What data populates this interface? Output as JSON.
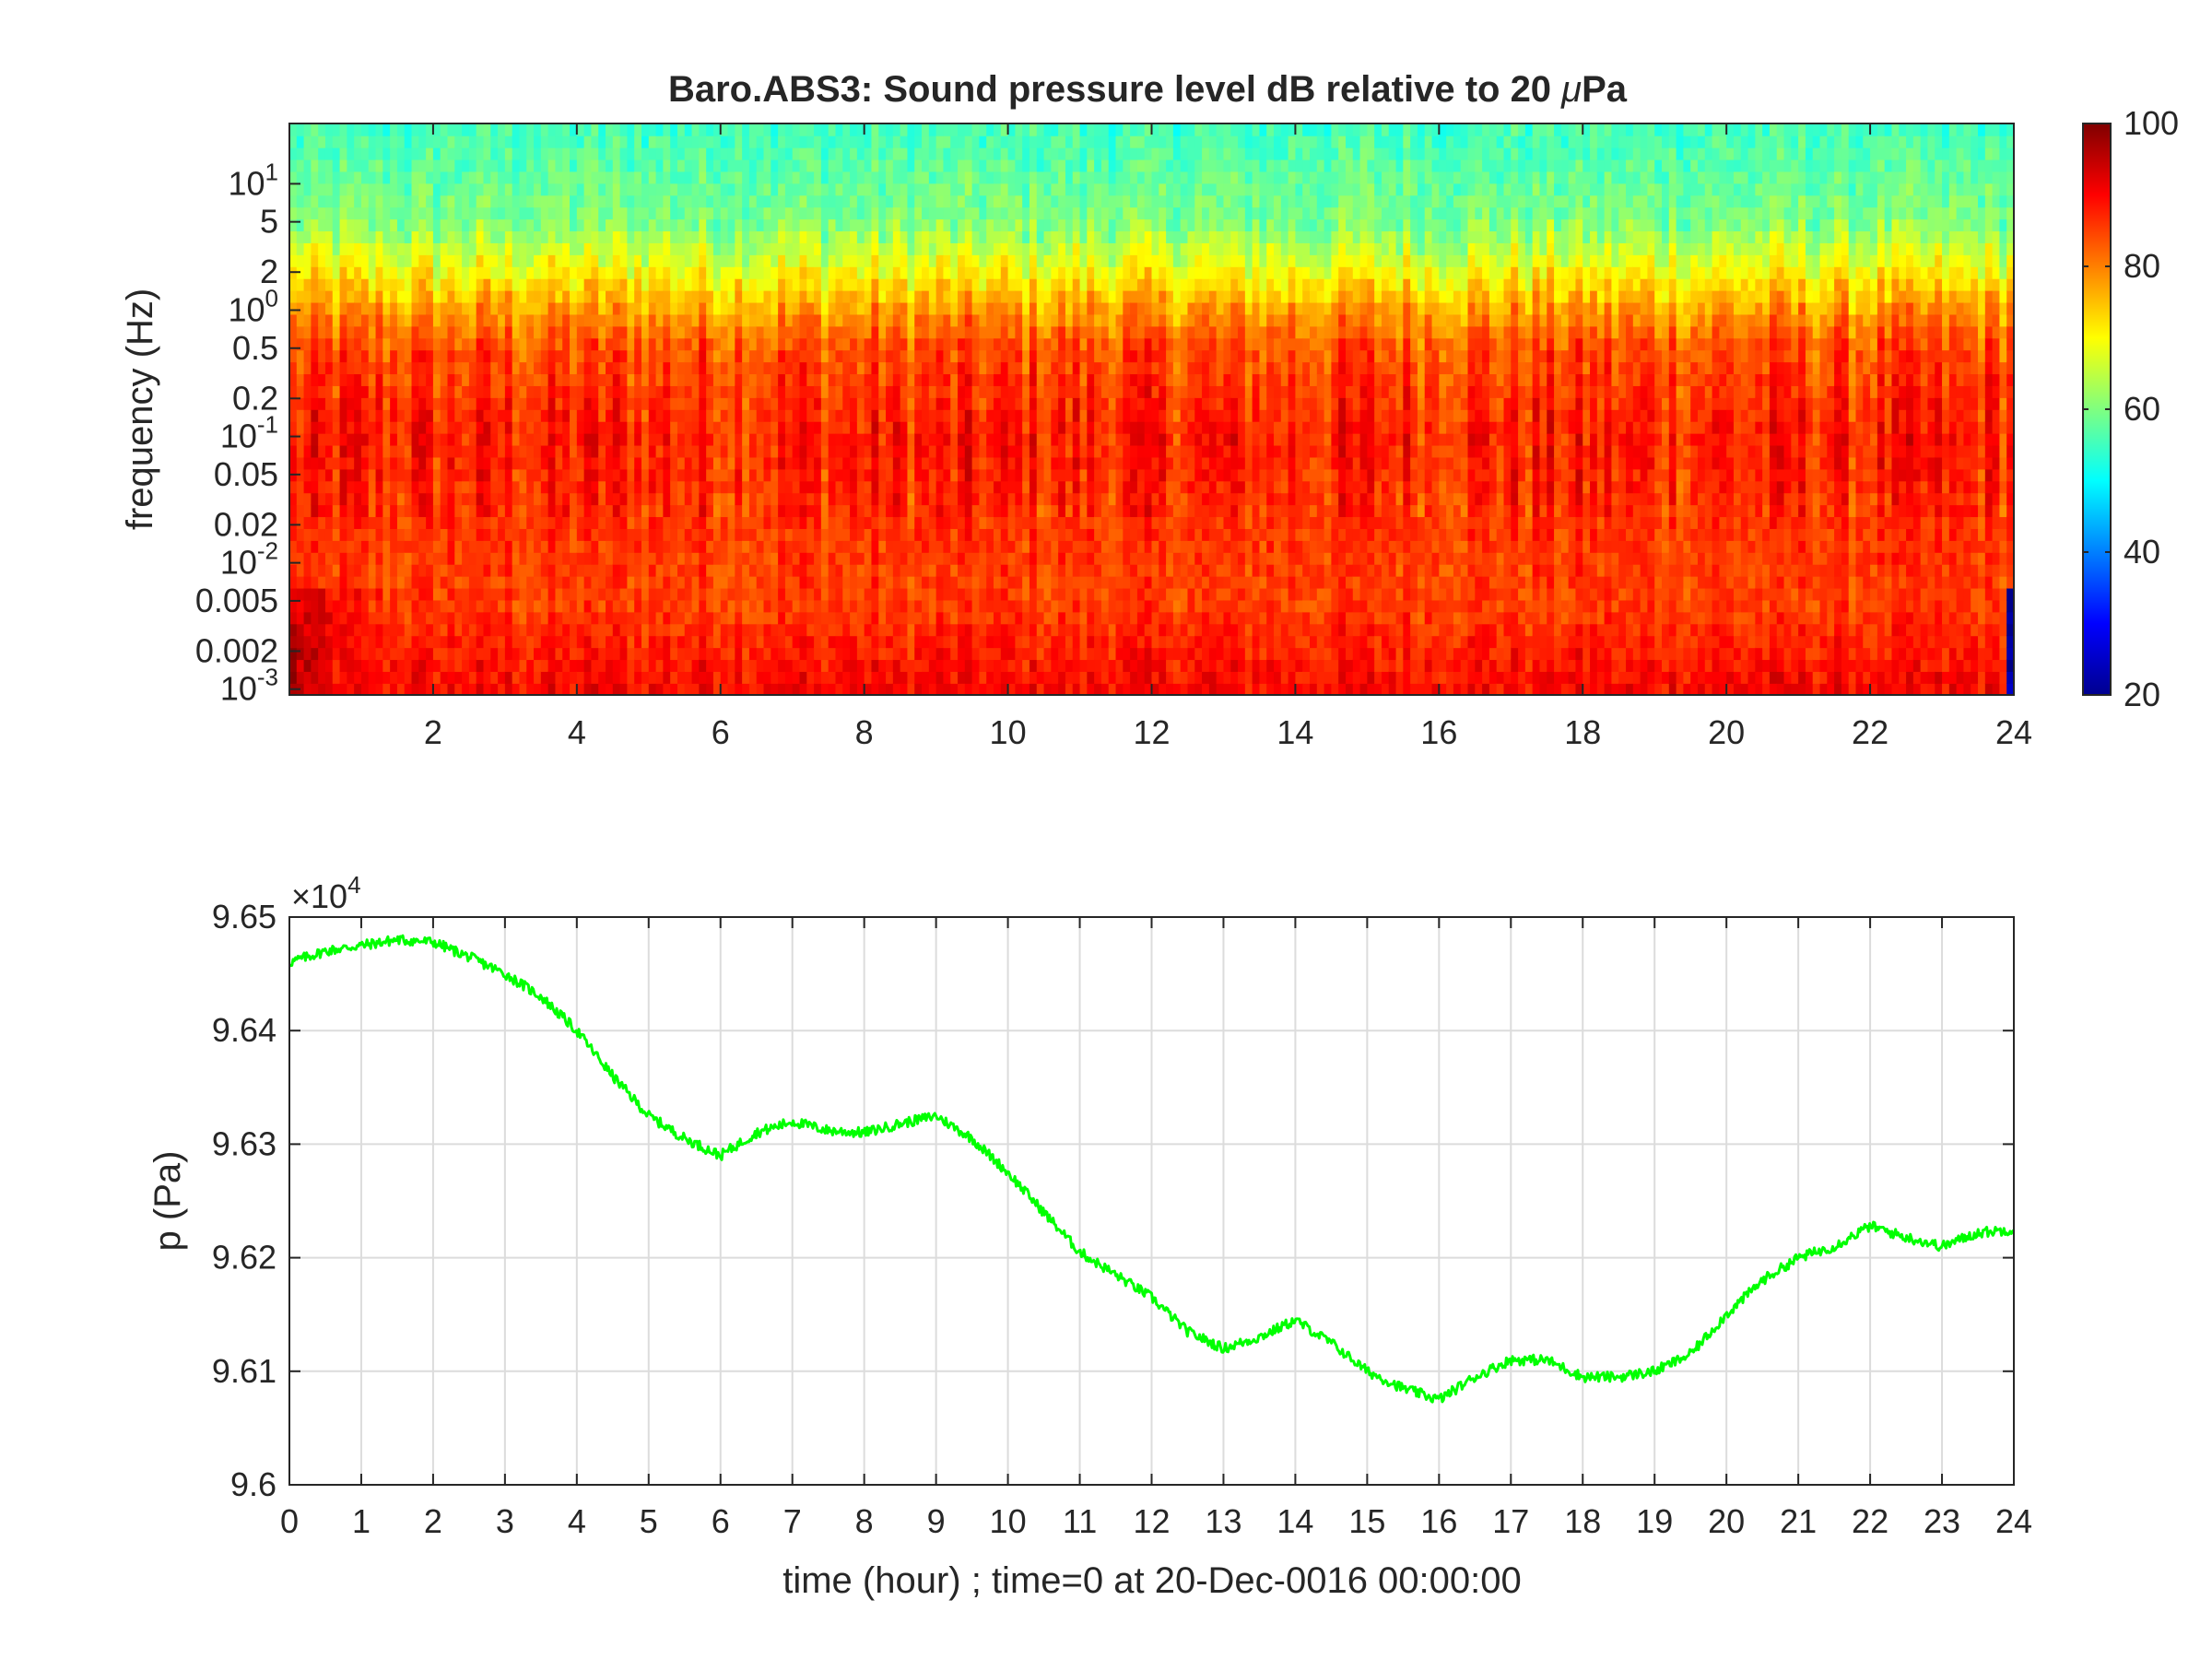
{
  "figure": {
    "title_prefix": "Baro.ABS3: Sound pressure level dB relative to 20 ",
    "title_mu": "μ",
    "title_suffix": "Pa"
  },
  "chart_data": [
    {
      "type": "heatmap",
      "title": "Baro.ABS3: Sound pressure level dB relative to 20 μPa",
      "xlabel": "",
      "ylabel": "frequency (Hz)",
      "xlim": [
        0,
        24
      ],
      "ylim": [
        0.0009,
        30
      ],
      "yscale": "log",
      "x_ticks": [
        2,
        4,
        6,
        8,
        10,
        12,
        14,
        16,
        18,
        20,
        22,
        24
      ],
      "y_ticks": [
        {
          "value": 0.001,
          "base": "10",
          "exp": "-3"
        },
        {
          "value": 0.002,
          "label": "0.002"
        },
        {
          "value": 0.005,
          "label": "0.005"
        },
        {
          "value": 0.01,
          "base": "10",
          "exp": "-2"
        },
        {
          "value": 0.02,
          "label": "0.02"
        },
        {
          "value": 0.05,
          "label": "0.05"
        },
        {
          "value": 0.1,
          "base": "10",
          "exp": "-1"
        },
        {
          "value": 0.2,
          "label": "0.2"
        },
        {
          "value": 0.5,
          "label": "0.5"
        },
        {
          "value": 1,
          "base": "10",
          "exp": "0"
        },
        {
          "value": 2,
          "label": "2"
        },
        {
          "value": 5,
          "label": "5"
        },
        {
          "value": 10,
          "base": "10",
          "exp": "1"
        }
      ],
      "colormap": "jet",
      "colorbar": {
        "min": 20,
        "max": 100,
        "ticks": [
          20,
          40,
          60,
          80,
          100
        ]
      },
      "level_profile_db": [
        {
          "freq_hz": 0.001,
          "db": 90
        },
        {
          "freq_hz": 0.002,
          "db": 88
        },
        {
          "freq_hz": 0.005,
          "db": 85
        },
        {
          "freq_hz": 0.02,
          "db": 86
        },
        {
          "freq_hz": 0.1,
          "db": 88
        },
        {
          "freq_hz": 0.5,
          "db": 84
        },
        {
          "freq_hz": 1,
          "db": 78
        },
        {
          "freq_hz": 2,
          "db": 70
        },
        {
          "freq_hz": 5,
          "db": 60
        },
        {
          "freq_hz": 30,
          "db": 55
        }
      ]
    },
    {
      "type": "line",
      "xlabel": "time (hour) ; time=0 at 20-Dec-0016 00:00:00",
      "ylabel": "p (Pa)",
      "y_multiplier": {
        "prefix": "×10",
        "exp": "4"
      },
      "xlim": [
        0,
        24
      ],
      "ylim": [
        96000,
        96500
      ],
      "grid": true,
      "line_color": "#00ff00",
      "x_ticks": [
        0,
        1,
        2,
        3,
        4,
        5,
        6,
        7,
        8,
        9,
        10,
        11,
        12,
        13,
        14,
        15,
        16,
        17,
        18,
        19,
        20,
        21,
        22,
        23,
        24
      ],
      "y_ticks": [
        {
          "value": 96000,
          "label": "9.6"
        },
        {
          "value": 96100,
          "label": "9.61"
        },
        {
          "value": 96200,
          "label": "9.62"
        },
        {
          "value": 96300,
          "label": "9.63"
        },
        {
          "value": 96400,
          "label": "9.64"
        },
        {
          "value": 96500,
          "label": "9.65"
        }
      ],
      "series": [
        {
          "x": [
            0,
            0.5,
            1,
            1.5,
            2,
            2.5,
            3,
            3.5,
            4,
            4.5,
            5,
            5.5,
            6,
            6.5,
            7,
            7.5,
            8,
            8.5,
            9,
            9.5,
            10,
            10.5,
            11,
            11.5,
            12,
            12.5,
            13,
            13.5,
            14,
            14.5,
            15,
            15.5,
            16,
            16.5,
            17,
            17.5,
            18,
            18.5,
            19,
            19.5,
            20,
            20.5,
            21,
            21.5,
            22,
            22.5,
            23,
            23.5,
            24
          ],
          "y": [
            96460,
            96470,
            96475,
            96480,
            96478,
            96465,
            96450,
            96430,
            96400,
            96360,
            96325,
            96305,
            96290,
            96310,
            96320,
            96312,
            96310,
            96318,
            96325,
            96305,
            96275,
            96240,
            96205,
            96185,
            96165,
            96135,
            96120,
            96130,
            96145,
            96125,
            96100,
            96085,
            96075,
            96095,
            96110,
            96110,
            96095,
            96095,
            96100,
            96115,
            96150,
            96180,
            96200,
            96210,
            96228,
            96218,
            96210,
            96222,
            96225
          ]
        }
      ]
    }
  ]
}
